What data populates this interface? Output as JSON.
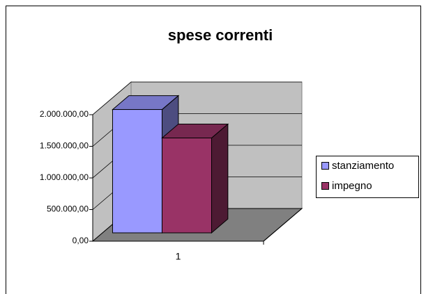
{
  "chart_data": {
    "type": "bar3d",
    "title": "spese correnti",
    "categories": [
      "1"
    ],
    "series": [
      {
        "name": "stanziamento",
        "color": "#9999ff",
        "values": [
          1950000
        ]
      },
      {
        "name": "impegno",
        "color": "#993366",
        "values": [
          1500000
        ]
      }
    ],
    "ylim": [
      0,
      2000000
    ],
    "yticks": [
      {
        "value": 0,
        "label": "0,00"
      },
      {
        "value": 500000,
        "label": "500.000,00"
      },
      {
        "value": 1000000,
        "label": "1.000.000,00"
      },
      {
        "value": 1500000,
        "label": "1.500.000,00"
      },
      {
        "value": 2000000,
        "label": "2.000.000,00"
      }
    ],
    "grid": true,
    "legend": "right"
  }
}
